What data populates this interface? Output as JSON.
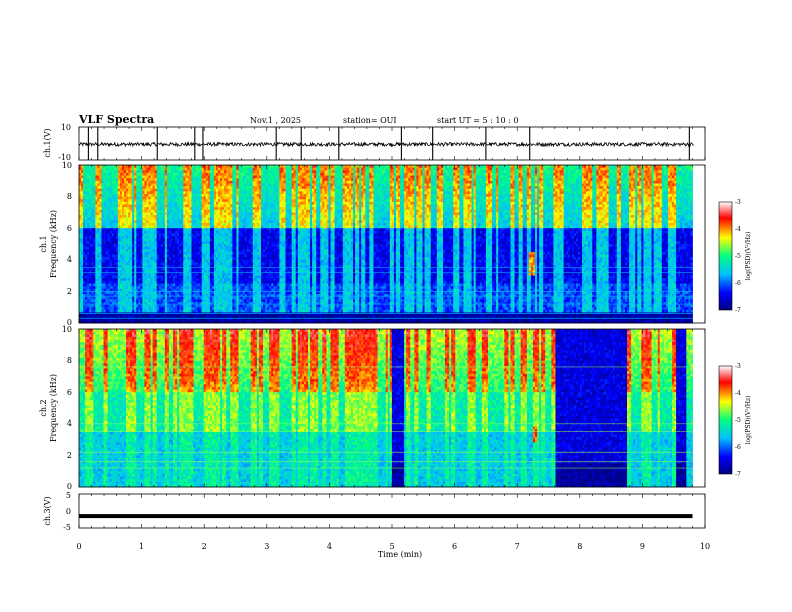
{
  "header": {
    "title": "VLF Spectra",
    "date": "Nov.1 , 2025",
    "station": "station= OUI",
    "start": "start UT = 5 : 10 : 0"
  },
  "chart_data": [
    {
      "type": "line",
      "name": "ch1-waveform",
      "ylabel": "ch.1(V)",
      "ylim": [
        -10,
        10
      ],
      "yticks": [
        "10",
        "-10"
      ],
      "xlim": [
        0,
        10
      ],
      "baseline": -0.5,
      "spike_times_min": [
        0.15,
        0.3,
        1.25,
        1.85,
        1.98,
        3.15,
        3.55,
        4.15,
        5.15,
        5.65,
        6.5,
        7.2,
        9.75
      ]
    },
    {
      "type": "heatmap",
      "name": "ch1-spectrogram",
      "ylabel_line1": "ch.1",
      "ylabel_line2": "Frequency (kHz)",
      "ylim": [
        0,
        10
      ],
      "yticks": [
        "0",
        "2",
        "4",
        "6",
        "8",
        "10"
      ],
      "xlim": [
        0,
        9.8
      ],
      "colorbar": {
        "label": "log(PSD)(V²/Hz)",
        "range": [
          -7,
          -3
        ],
        "ticks": [
          "-3",
          "-4",
          "-5",
          "-6",
          "-7"
        ],
        "colors": [
          "#000080",
          "#0000ff",
          "#00bfff",
          "#00ff80",
          "#ffff00",
          "#ff0000",
          "#ffffff"
        ]
      }
    },
    {
      "type": "heatmap",
      "name": "ch2-spectrogram",
      "ylabel_line1": "ch.2",
      "ylabel_line2": "Frequency (kHz)",
      "ylim": [
        0,
        10
      ],
      "yticks": [
        "0",
        "2",
        "4",
        "6",
        "8",
        "10"
      ],
      "xlim": [
        0,
        9.8
      ],
      "colorbar": {
        "label": "log(PSD)(V²/Hz)",
        "range": [
          -7,
          -3
        ],
        "ticks": [
          "-3",
          "-4",
          "-5",
          "-6",
          "-7"
        ],
        "colors": [
          "#000080",
          "#0000ff",
          "#00bfff",
          "#00ff80",
          "#ffff00",
          "#ff0000",
          "#ffffff"
        ]
      }
    },
    {
      "type": "line",
      "name": "ch3-signal",
      "ylabel": "ch.3(V)",
      "ylim": [
        -5,
        5
      ],
      "yticks": [
        "5",
        "0",
        "-5"
      ],
      "xlim": [
        0,
        9.8
      ],
      "value": -1.5
    }
  ],
  "xaxis": {
    "label": "Time (min)",
    "range": [
      0,
      10
    ],
    "ticks": [
      "0",
      "1",
      "2",
      "3",
      "4",
      "5",
      "6",
      "7",
      "8",
      "9",
      "10"
    ]
  }
}
